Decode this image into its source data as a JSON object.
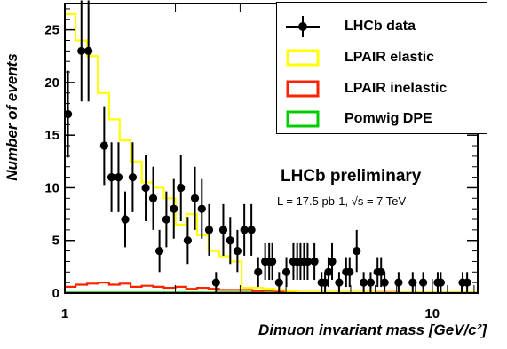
{
  "chart_data": {
    "type": "line",
    "xlabel": "Dimuon invariant mass [GeV/c²]",
    "ylabel": "Number of events",
    "x_scale": "log",
    "xlim": [
      1,
      13.3
    ],
    "ylim": [
      0,
      27.5
    ],
    "x_ticks": [
      "1",
      "10"
    ],
    "y_ticks": [
      0,
      5,
      10,
      15,
      20,
      25
    ],
    "annotations": {
      "preliminary": "LHCb preliminary",
      "luminosity": "L = 17.5 pb-1, √s = 7 TeV"
    },
    "legend": {
      "position": "top-right",
      "entries": [
        {
          "label": "LHCb data",
          "marker": "point-errorbar",
          "color": "#000000"
        },
        {
          "label": "LPAIR elastic",
          "marker": "box",
          "color": "#ffff00"
        },
        {
          "label": "LPAIR inelastic",
          "marker": "box",
          "color": "#ff2200"
        },
        {
          "label": "Pomwig DPE",
          "marker": "box",
          "color": "#00cc00"
        }
      ]
    },
    "series": [
      {
        "name": "LHCb data",
        "kind": "points",
        "color": "#000000",
        "points": [
          [
            1.02,
            17
          ],
          [
            1.11,
            23
          ],
          [
            1.16,
            23
          ],
          [
            1.28,
            14
          ],
          [
            1.34,
            11
          ],
          [
            1.4,
            11
          ],
          [
            1.46,
            7
          ],
          [
            1.53,
            11
          ],
          [
            1.66,
            10
          ],
          [
            1.74,
            9
          ],
          [
            1.81,
            4
          ],
          [
            1.89,
            7
          ],
          [
            1.98,
            8
          ],
          [
            2.07,
            10
          ],
          [
            2.16,
            5
          ],
          [
            2.26,
            9
          ],
          [
            2.36,
            8
          ],
          [
            2.47,
            6
          ],
          [
            2.58,
            1
          ],
          [
            2.7,
            6
          ],
          [
            2.82,
            5
          ],
          [
            2.95,
            4
          ],
          [
            3.08,
            6
          ],
          [
            3.22,
            6
          ],
          [
            3.36,
            2
          ],
          [
            3.51,
            3
          ],
          [
            3.6,
            3
          ],
          [
            3.67,
            3
          ],
          [
            3.83,
            1
          ],
          [
            4.01,
            2
          ],
          [
            4.19,
            3
          ],
          [
            4.29,
            3
          ],
          [
            4.38,
            3
          ],
          [
            4.48,
            3
          ],
          [
            4.58,
            3
          ],
          [
            4.78,
            3
          ],
          [
            5.0,
            1
          ],
          [
            5.11,
            1
          ],
          [
            5.22,
            2
          ],
          [
            5.34,
            3
          ],
          [
            5.58,
            1
          ],
          [
            5.83,
            2
          ],
          [
            5.96,
            2
          ],
          [
            6.23,
            4
          ],
          [
            6.51,
            1
          ],
          [
            6.8,
            1
          ],
          [
            7.1,
            2
          ],
          [
            7.26,
            2
          ],
          [
            7.42,
            1
          ],
          [
            8.1,
            1
          ],
          [
            8.85,
            1
          ],
          [
            9.45,
            1
          ],
          [
            10.35,
            1
          ],
          [
            10.55,
            1
          ],
          [
            12.1,
            1
          ],
          [
            12.45,
            1
          ]
        ]
      },
      {
        "name": "LPAIR elastic",
        "kind": "histogram",
        "color": "#ffff00",
        "edges": [
          1.0,
          1.07,
          1.15,
          1.23,
          1.32,
          1.41,
          1.51,
          1.62,
          1.74,
          1.86,
          2.0,
          2.14,
          2.29,
          2.46,
          2.63,
          2.82,
          3.03,
          3.24,
          3.47,
          3.72,
          3.99,
          4.3,
          5.0,
          6.0,
          7.0,
          8.0,
          9.0,
          10.0,
          11.0,
          13.3
        ],
        "values": [
          26.5,
          24,
          22.5,
          19,
          16.5,
          14.5,
          12.5,
          10.5,
          10,
          9,
          6.5,
          7.5,
          5.5,
          4,
          3.5,
          3,
          0.5,
          0.5,
          0.4,
          0.3,
          0.2,
          0.1,
          0.1,
          0.1,
          0.05,
          0.05,
          0.05,
          0.05,
          0.05
        ]
      },
      {
        "name": "LPAIR inelastic",
        "kind": "histogram",
        "color": "#ff2200",
        "edges": [
          1.0,
          1.07,
          1.15,
          1.23,
          1.32,
          1.41,
          1.51,
          1.62,
          1.74,
          1.86,
          2.0,
          2.14,
          2.29,
          2.46,
          2.63,
          2.82,
          3.03,
          3.24,
          3.47,
          3.72,
          3.99,
          4.3,
          5.0,
          6.0,
          7.0,
          8.0,
          9.0,
          10.0,
          11.0,
          13.3
        ],
        "values": [
          0.6,
          0.8,
          0.9,
          1.0,
          0.8,
          0.9,
          0.6,
          0.7,
          0.6,
          0.5,
          0.6,
          0.4,
          0.5,
          0.4,
          0.3,
          0.3,
          0.3,
          0.2,
          0.25,
          0.15,
          0.15,
          0.1,
          0.1,
          0.1,
          0.1,
          0.05,
          0.05,
          0.05,
          0.05
        ]
      },
      {
        "name": "Pomwig DPE",
        "kind": "histogram",
        "color": "#00cc00",
        "edges": [
          1.0,
          1.5,
          2.0,
          3.0,
          4.0,
          6.0,
          8.0,
          13.3
        ],
        "values": [
          0.05,
          0.05,
          0.05,
          0.05,
          0.05,
          0.05,
          0.05
        ]
      }
    ]
  }
}
